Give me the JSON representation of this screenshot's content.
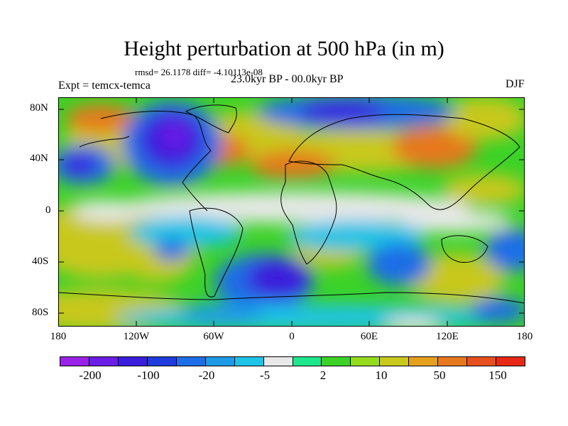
{
  "title": "Height perturbation at 500 hPa (in m)",
  "stats": "rmsd= 26.1178 diff= -4.10113e-08",
  "experiment": "Expt = temcx-temca",
  "period": "23.0kyr BP - 00.0kyr BP",
  "season": "DJF",
  "map": {
    "lat_ticks": [
      "80N",
      "40N",
      "0",
      "40S",
      "80S"
    ],
    "lon_ticks": [
      "180",
      "120W",
      "60W",
      "0",
      "60E",
      "120E",
      "180"
    ]
  },
  "colorbar": {
    "colors": [
      "#9a22e6",
      "#6a1ee6",
      "#3a1edc",
      "#1e3cdc",
      "#1e6ee6",
      "#1e9be6",
      "#1ec3e6",
      "#e8e8e8",
      "#1ee68c",
      "#3cd228",
      "#96dc1e",
      "#c8c81e",
      "#e6a01e",
      "#e6781e",
      "#e6501e",
      "#e62814"
    ],
    "labels": [
      "-200",
      "-100",
      "-20",
      "-5",
      "2",
      "10",
      "50",
      "150"
    ]
  },
  "colors": {
    "strong_negative": "#3a1edc",
    "negative": "#1e6ee6",
    "weak_negative": "#1ec3e6",
    "neutral": "#e8e8e8",
    "weak_positive": "#3cd228",
    "positive": "#c8c81e",
    "strong_positive": "#e6781e"
  }
}
